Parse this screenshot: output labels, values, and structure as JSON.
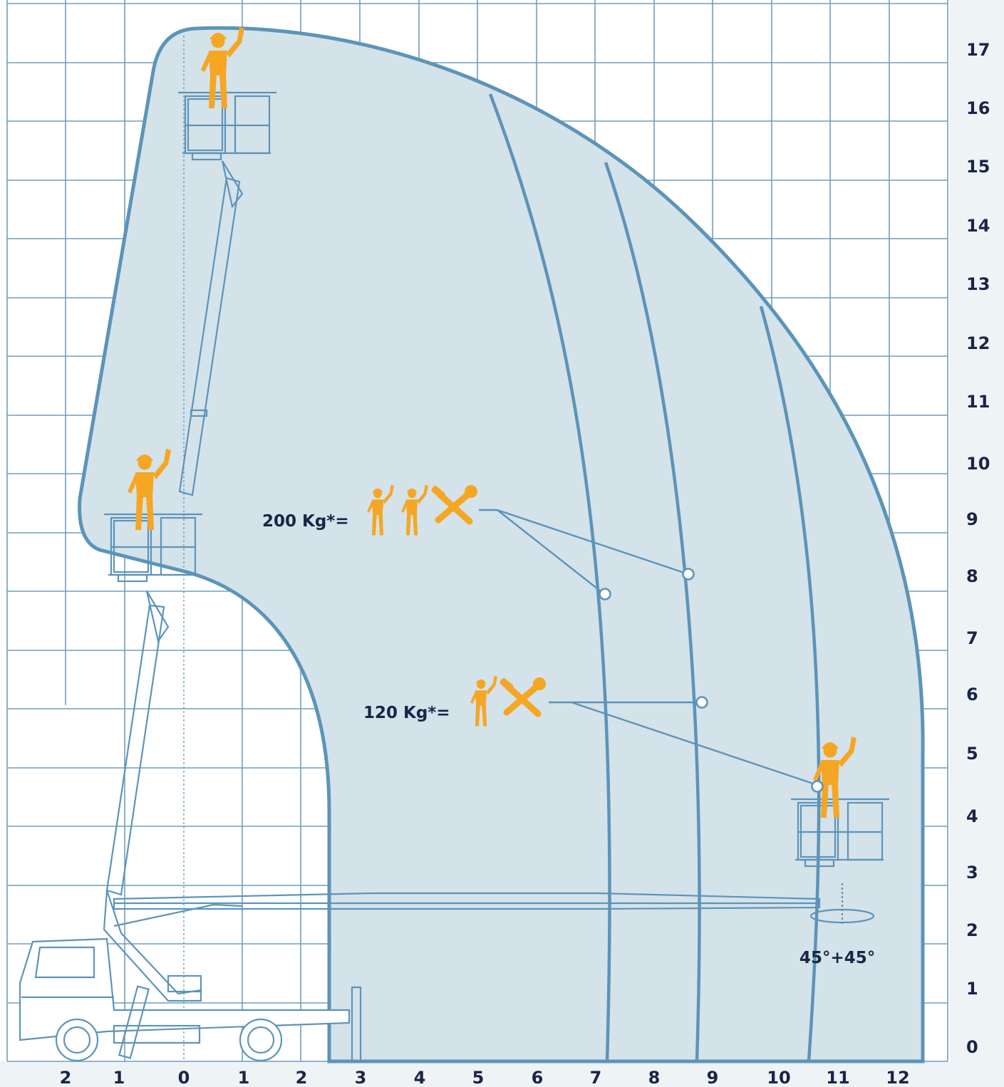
{
  "x_axis": {
    "ticks": [
      "2",
      "1",
      "0",
      "1",
      "2",
      "3",
      "4",
      "5",
      "6",
      "7",
      "8",
      "9",
      "10",
      "11",
      "12"
    ]
  },
  "y_axis": {
    "ticks": [
      "0",
      "1",
      "2",
      "3",
      "4",
      "5",
      "6",
      "7",
      "8",
      "9",
      "10",
      "11",
      "12",
      "13",
      "14",
      "15",
      "16",
      "17"
    ]
  },
  "capacities": [
    {
      "label": "200 Kg*=",
      "persons": 2,
      "tools": true
    },
    {
      "label": "120 Kg*=",
      "persons": 1,
      "tools": true
    }
  ],
  "rotation_label": "45°+45°",
  "colors": {
    "envelope_fill": "#d4e2ea",
    "line": "#5d94b8",
    "grid": "#6f9ec0",
    "worker": "#f5a623",
    "text": "#1a2545"
  },
  "icons": [
    "worker-icon",
    "tools-icon",
    "rotation-icon",
    "basket-icon"
  ]
}
